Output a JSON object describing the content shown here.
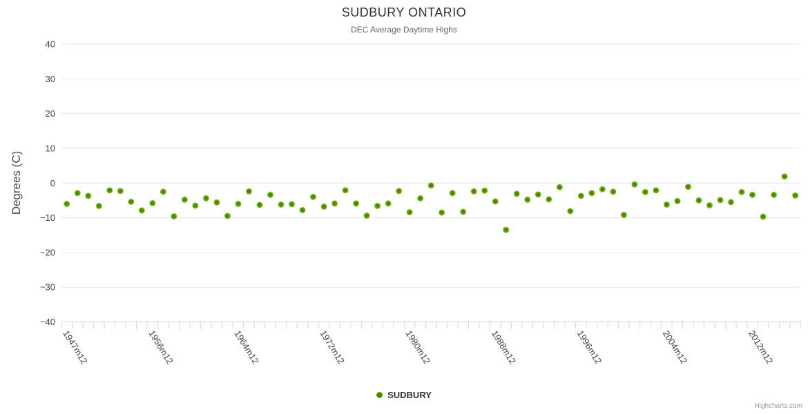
{
  "chart": {
    "title": "SUDBURY ONTARIO",
    "subtitle": "DEC Average Daytime Highs",
    "y_axis_title": "Degrees (C)",
    "legend": {
      "label": "SUDBURY"
    },
    "credits": "Highcharts.com",
    "colors": {
      "point_outer": "#8dc41f",
      "point_mid": "#4c8c0a",
      "point_inner": "#3f7e06",
      "gridline": "#e6e6e6",
      "axis_line": "#ccd6eb",
      "axis_label_text": "#444444"
    }
  },
  "chart_data": {
    "type": "scatter",
    "title": "SUDBURY ONTARIO",
    "subtitle": "DEC Average Daytime Highs",
    "xlabel": "",
    "ylabel": "Degrees (C)",
    "ylim": [
      -40,
      40
    ],
    "ytick_step": 10,
    "grid": "horizontal",
    "legend_position": "bottom-center",
    "series_name": "SUDBURY",
    "x_tick_labels": [
      "1947m12",
      "1956m12",
      "1964m12",
      "1972m12",
      "1980m12",
      "1988m12",
      "1996m12",
      "2004m12",
      "2012m12"
    ],
    "x_tick_indices": [
      0,
      8,
      16,
      24,
      32,
      40,
      48,
      56,
      64
    ],
    "values": [
      -6.0,
      -2.9,
      -3.7,
      -6.6,
      -2.1,
      -2.3,
      -5.4,
      -7.9,
      -5.8,
      -2.5,
      -9.6,
      -4.8,
      -6.5,
      -4.4,
      -5.6,
      -9.5,
      -6.0,
      -2.4,
      -6.3,
      -3.4,
      -6.2,
      -6.1,
      -7.8,
      -4.0,
      -6.8,
      -5.9,
      -2.1,
      -5.9,
      -9.4,
      -6.6,
      -5.9,
      -2.3,
      -8.4,
      -4.4,
      -0.7,
      -8.5,
      -2.9,
      -8.3,
      -2.4,
      -2.2,
      -5.3,
      -13.5,
      -3.1,
      -4.8,
      -3.3,
      -4.7,
      -1.2,
      -8.1,
      -3.7,
      -2.9,
      -1.8,
      -2.5,
      -9.2,
      -0.4,
      -2.6,
      -2.1,
      -6.2,
      -5.2,
      -1.1,
      -5.0,
      -6.4,
      -4.9,
      -5.5,
      -2.6,
      -3.4,
      -9.7,
      -3.4,
      1.9,
      -3.6
    ]
  }
}
